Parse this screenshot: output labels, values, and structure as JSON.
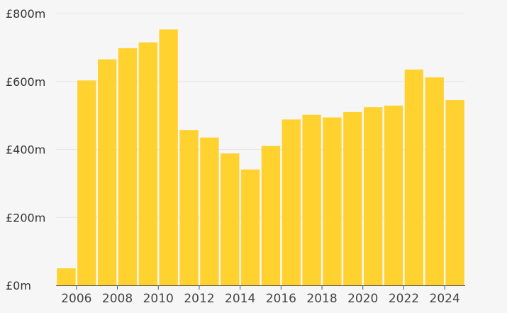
{
  "chart_data": {
    "type": "bar",
    "title": "",
    "xlabel": "",
    "ylabel": "",
    "categories": [
      "2005",
      "2006",
      "2007",
      "2008",
      "2009",
      "2010",
      "2011",
      "2012",
      "2013",
      "2014",
      "2015",
      "2016",
      "2017",
      "2018",
      "2019",
      "2020",
      "2021",
      "2022",
      "2023",
      "2024"
    ],
    "values": [
      50,
      603,
      665,
      698,
      715,
      753,
      457,
      435,
      388,
      341,
      410,
      488,
      502,
      494,
      510,
      524,
      529,
      635,
      612,
      545
    ],
    "ylim": [
      0,
      800
    ],
    "y_ticks": [
      {
        "value": 0,
        "label": "£0m"
      },
      {
        "value": 200,
        "label": "£200m"
      },
      {
        "value": 400,
        "label": "£400m"
      },
      {
        "value": 600,
        "label": "£600m"
      },
      {
        "value": 800,
        "label": "£800m"
      }
    ],
    "x_ticks": [
      "2006",
      "2008",
      "2010",
      "2012",
      "2014",
      "2016",
      "2018",
      "2020",
      "2022",
      "2024"
    ],
    "grid": true,
    "bar_color": "#ffd22f",
    "grid_color": "#e6e6e6"
  }
}
